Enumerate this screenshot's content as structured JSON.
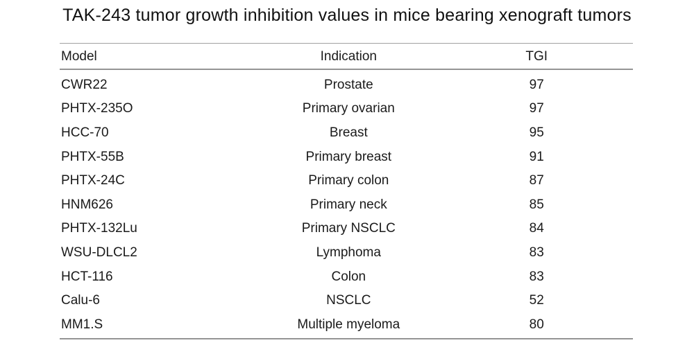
{
  "title": "TAK-243 tumor growth inhibition values in mice bearing xenograft tumors",
  "table": {
    "columns": [
      "Model",
      "Indication",
      "TGI"
    ],
    "rows": [
      {
        "model": "CWR22",
        "indication": "Prostate",
        "tgi": "97"
      },
      {
        "model": "PHTX-235O",
        "indication": "Primary ovarian",
        "tgi": "97"
      },
      {
        "model": "HCC-70",
        "indication": "Breast",
        "tgi": "95"
      },
      {
        "model": "PHTX-55B",
        "indication": "Primary breast",
        "tgi": "91"
      },
      {
        "model": "PHTX-24C",
        "indication": "Primary colon",
        "tgi": "87"
      },
      {
        "model": "HNM626",
        "indication": "Primary neck",
        "tgi": "85"
      },
      {
        "model": "PHTX-132Lu",
        "indication": "Primary NSCLC",
        "tgi": "84"
      },
      {
        "model": "WSU-DLCL2",
        "indication": "Lymphoma",
        "tgi": "83"
      },
      {
        "model": "HCT-116",
        "indication": "Colon",
        "tgi": "83"
      },
      {
        "model": "Calu-6",
        "indication": "NSCLC",
        "tgi": "52"
      },
      {
        "model": "MM1.S",
        "indication": "Multiple myeloma",
        "tgi": "80"
      }
    ]
  },
  "chart_data": {
    "type": "table",
    "title": "TAK-243 tumor growth inhibition values in mice bearing xenograft tumors",
    "columns": [
      "Model",
      "Indication",
      "TGI"
    ],
    "rows": [
      [
        "CWR22",
        "Prostate",
        97
      ],
      [
        "PHTX-235O",
        "Primary ovarian",
        97
      ],
      [
        "HCC-70",
        "Breast",
        95
      ],
      [
        "PHTX-55B",
        "Primary breast",
        91
      ],
      [
        "PHTX-24C",
        "Primary colon",
        87
      ],
      [
        "HNM626",
        "Primary neck",
        85
      ],
      [
        "PHTX-132Lu",
        "Primary NSCLC",
        84
      ],
      [
        "WSU-DLCL2",
        "Lymphoma",
        83
      ],
      [
        "HCT-116",
        "Colon",
        83
      ],
      [
        "Calu-6",
        "NSCLC",
        52
      ],
      [
        "MM1.S",
        "Multiple myeloma",
        80
      ]
    ]
  },
  "colors": {
    "text": "#1a1a1a",
    "rule": "#949494",
    "background": "#ffffff"
  }
}
